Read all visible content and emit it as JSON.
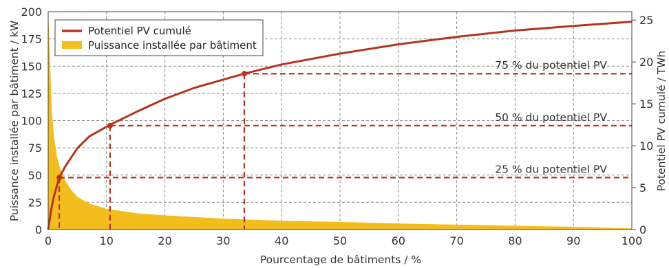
{
  "chart_data": {
    "type": "line",
    "xlabel": "Pourcentage de bâtiments / %",
    "ylabel_left": "Puissance installée par bâtiment / kW",
    "ylabel_right": "Potentiel PV cumulé / TWh",
    "x_ticks": [
      "0",
      "10",
      "20",
      "30",
      "40",
      "50",
      "60",
      "70",
      "80",
      "90",
      "100"
    ],
    "y_left_ticks": [
      "0",
      "25",
      "50",
      "75",
      "100",
      "125",
      "150",
      "175",
      "200"
    ],
    "y_right_ticks": [
      "0",
      "5",
      "10",
      "15",
      "20",
      "25"
    ],
    "xlim": [
      0,
      100
    ],
    "ylim_left": [
      0,
      200
    ],
    "ylim_right": [
      0,
      26
    ],
    "grid": true,
    "legend_position": "top-left",
    "colors": {
      "cumulative": "#b5341f",
      "installed": "#f2bd1d"
    },
    "series": [
      {
        "name": "Potentiel PV cumulé",
        "axis": "right",
        "x": [
          0,
          0.5,
          1,
          1.9,
          3,
          5,
          7,
          10.6,
          15,
          20,
          25,
          30,
          33.6,
          40,
          50,
          60,
          70,
          80,
          90,
          100
        ],
        "y": [
          0,
          2.3,
          4.0,
          6.2,
          7.6,
          9.7,
          11.1,
          12.5,
          14.0,
          15.6,
          16.9,
          17.9,
          18.6,
          19.7,
          21.0,
          22.1,
          23.0,
          23.75,
          24.3,
          24.8
        ]
      },
      {
        "name": "Puissance installée par bâtiment",
        "axis": "left",
        "x": [
          0,
          0.3,
          0.6,
          1,
          1.5,
          2,
          3,
          4,
          5,
          7,
          10,
          15,
          20,
          30,
          40,
          50,
          60,
          70,
          80,
          90,
          100
        ],
        "y": [
          200,
          160,
          110,
          85,
          67,
          57,
          44,
          36,
          30,
          24,
          19,
          15,
          13,
          10,
          8,
          7,
          5.5,
          4.5,
          3.5,
          2.5,
          1
        ]
      }
    ],
    "annotations": [
      {
        "text": "25 % du potentiel PV",
        "x": 1.9,
        "y": 6.2
      },
      {
        "text": "50 % du potentiel PV",
        "x": 10.6,
        "y": 12.4
      },
      {
        "text": "75 % du potentiel PV",
        "x": 33.6,
        "y": 18.6
      }
    ]
  }
}
